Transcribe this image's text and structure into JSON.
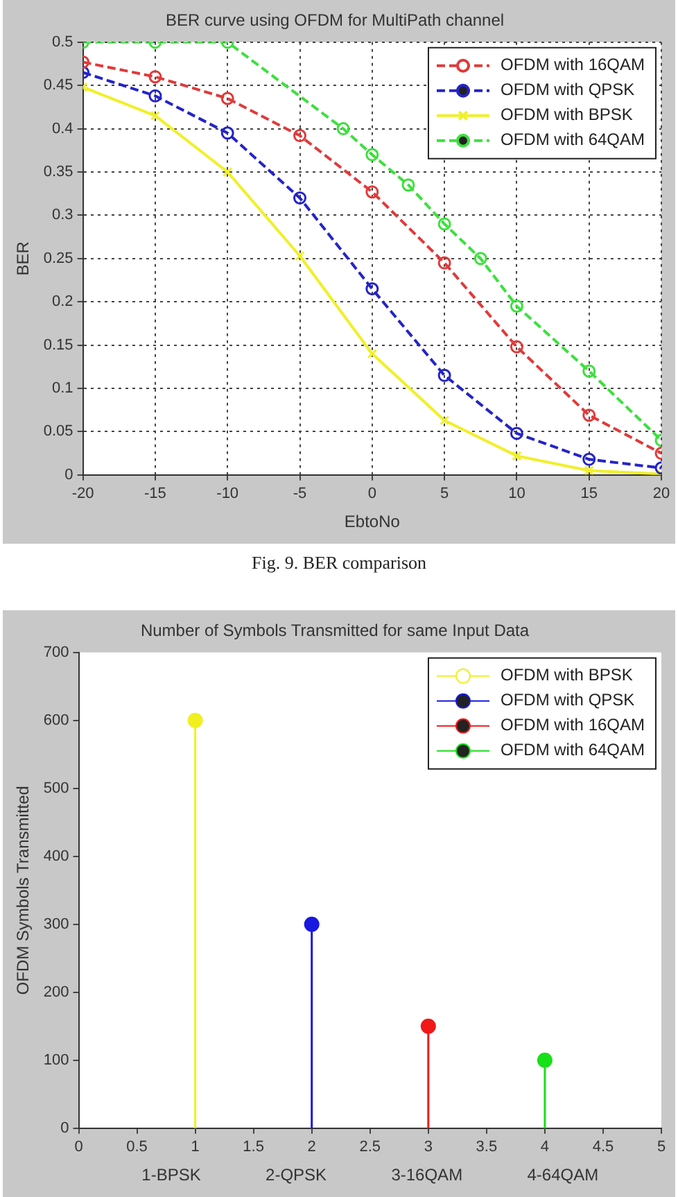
{
  "chart_data": [
    {
      "type": "line",
      "title": "BER curve using OFDM for MultiPath channel",
      "xlabel": "EbtoNo",
      "ylabel": "BER",
      "x": [
        -20,
        -15,
        -10,
        -5,
        0,
        5,
        10,
        15,
        20
      ],
      "series": [
        {
          "name": "OFDM with 16QAM",
          "color": "#e03a3a",
          "marker": "circle",
          "line_style": "dashed",
          "values": [
            0.477,
            0.46,
            0.435,
            0.392,
            0.327,
            0.245,
            0.148,
            0.069,
            0.025
          ]
        },
        {
          "name": "OFDM with QPSK",
          "color": "#2424c8",
          "marker": "circle",
          "line_style": "dashed",
          "values": [
            0.465,
            0.438,
            0.395,
            0.32,
            0.215,
            0.115,
            0.048,
            0.018,
            0.008
          ]
        },
        {
          "name": "OFDM with BPSK",
          "color": "#f0f028",
          "marker": "cross",
          "line_style": "solid",
          "values": [
            0.448,
            0.415,
            0.35,
            0.253,
            0.14,
            0.063,
            0.022,
            0.005,
            0.001
          ]
        },
        {
          "name": "OFDM with 64QAM",
          "color": "#3ce03c",
          "marker": "circle",
          "line_style": "dashed",
          "x": [
            -20,
            -15,
            -10,
            -2,
            0,
            2.5,
            5,
            7.5,
            10,
            15,
            20
          ],
          "values": [
            0.5,
            0.5,
            0.5,
            0.4,
            0.37,
            0.335,
            0.29,
            0.25,
            0.195,
            0.12,
            0.04
          ]
        }
      ],
      "xlim": [
        -20,
        20
      ],
      "xticks": [
        -20,
        -15,
        -10,
        -5,
        0,
        5,
        10,
        15,
        20
      ],
      "ylim": [
        0,
        0.5
      ],
      "yticks": [
        0,
        0.05,
        0.1,
        0.15,
        0.2,
        0.25,
        0.3,
        0.35,
        0.4,
        0.45,
        0.5
      ],
      "grid": true,
      "legend": "top right",
      "annotations": [
        "Fig. 9. BER comparison"
      ]
    },
    {
      "type": "lollipop",
      "title": "Number of Symbols Transmitted for same Input Data",
      "xlabel": "1-BPSK              2-QPSK              3-16QAM              4-64QAM",
      "ylabel": "OFDM Symbols Transmitted",
      "series": [
        {
          "name": "OFDM with BPSK",
          "color": "#f0f020",
          "x": [
            1
          ],
          "values": [
            600
          ]
        },
        {
          "name": "OFDM with QPSK",
          "color": "#1818e0",
          "x": [
            2
          ],
          "values": [
            300
          ]
        },
        {
          "name": "OFDM with 16QAM",
          "color": "#f01818",
          "x": [
            3
          ],
          "values": [
            150
          ]
        },
        {
          "name": "OFDM with 64QAM",
          "color": "#18e018",
          "x": [
            4
          ],
          "values": [
            100
          ]
        }
      ],
      "xlim": [
        0,
        5
      ],
      "xticks": [
        0,
        0.5,
        1,
        1.5,
        2,
        2.5,
        3,
        3.5,
        4,
        4.5,
        5
      ],
      "ylim": [
        0,
        700
      ],
      "yticks": [
        0,
        100,
        200,
        300,
        400,
        500,
        600,
        700
      ],
      "marker": "circle",
      "legend": "top right"
    }
  ]
}
